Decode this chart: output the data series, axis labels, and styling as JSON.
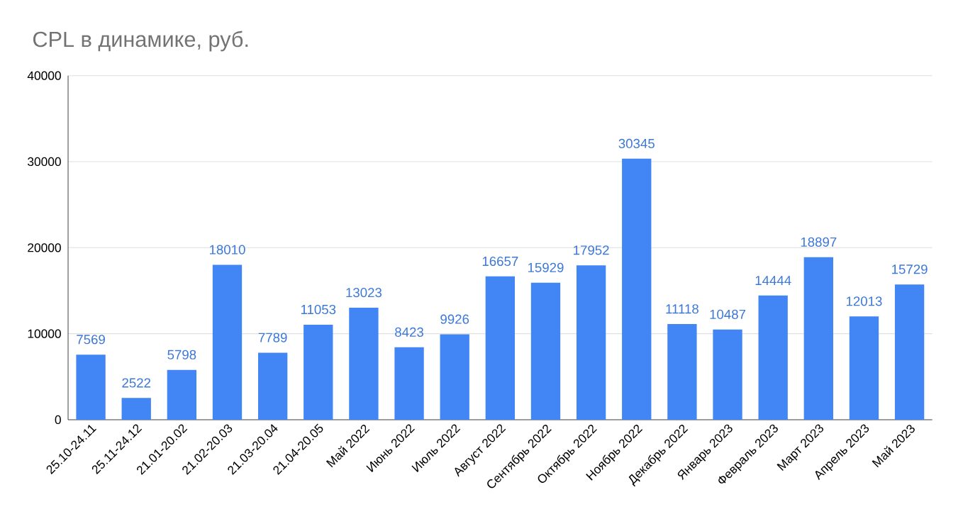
{
  "chart_data": {
    "type": "bar",
    "title": "CPL  в динамике, руб.",
    "categories": [
      "25.10-24.11",
      "25.11-24.12",
      "21.01-20.02",
      "21.02-20.03",
      "21.03-20.04",
      "21.04-20.05",
      "Май 2022",
      "Июнь 2022",
      "Июль 2022",
      "Август 2022",
      "Сентябрь 2022",
      "Октябрь 2022",
      "Ноябрь 2022",
      "Декабрь 2022",
      "Январь 2023",
      "Февраль 2023",
      "Март 2023",
      "Апрель 2023",
      "Май 2023"
    ],
    "values": [
      7569,
      2522,
      5798,
      18010,
      7789,
      11053,
      13023,
      8423,
      9926,
      16657,
      15929,
      17952,
      30345,
      11118,
      10487,
      14444,
      18897,
      12013,
      15729
    ],
    "color": "#4285f4",
    "ylim": [
      0,
      40000
    ],
    "yticks": [
      0,
      10000,
      20000,
      30000,
      40000
    ],
    "grid": "y",
    "data_labels": true
  }
}
